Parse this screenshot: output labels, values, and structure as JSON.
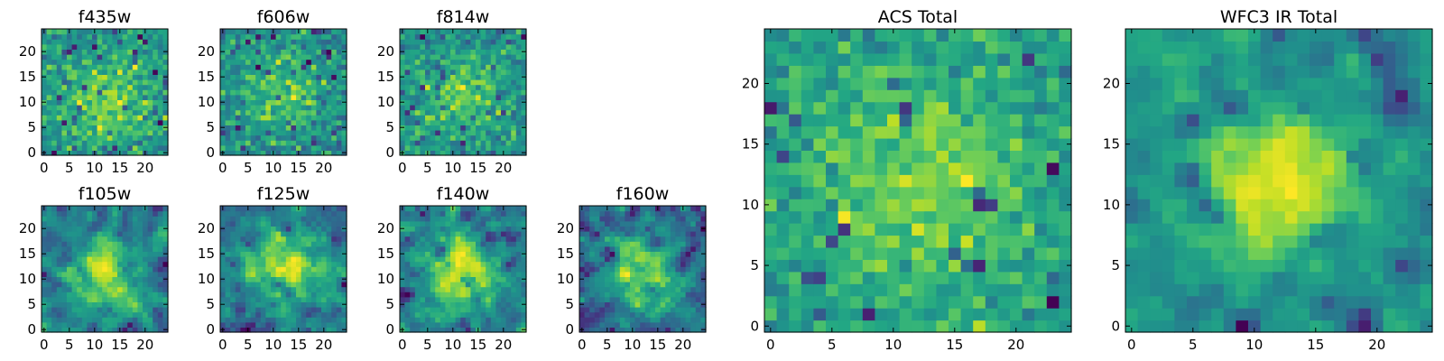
{
  "chart_data": [
    {
      "type": "heatmap",
      "title": "f435w",
      "grid_size": 25,
      "xticks": [
        0,
        5,
        10,
        15,
        20
      ],
      "yticks": [
        0,
        5,
        10,
        15,
        20
      ],
      "xlim": [
        0,
        25
      ],
      "ylim": [
        0,
        25
      ],
      "colormap": "viridis",
      "noise": 0.32,
      "peak": [
        13,
        10
      ],
      "peak_sigma": 6,
      "seed": 3
    },
    {
      "type": "heatmap",
      "title": "f606w",
      "grid_size": 25,
      "xticks": [
        0,
        5,
        10,
        15,
        20
      ],
      "yticks": [
        0,
        5,
        10,
        15,
        20
      ],
      "xlim": [
        0,
        25
      ],
      "ylim": [
        0,
        25
      ],
      "colormap": "viridis",
      "noise": 0.34,
      "peak": [
        12,
        12
      ],
      "peak_sigma": 6,
      "seed": 11
    },
    {
      "type": "heatmap",
      "title": "f814w",
      "grid_size": 25,
      "xticks": [
        0,
        5,
        10,
        15,
        20
      ],
      "yticks": [
        0,
        5,
        10,
        15,
        20
      ],
      "xlim": [
        0,
        25
      ],
      "ylim": [
        0,
        25
      ],
      "colormap": "viridis",
      "noise": 0.32,
      "peak": [
        12,
        11
      ],
      "peak_sigma": 5,
      "seed": 29
    },
    {
      "type": "heatmap",
      "title": "f105w",
      "grid_size": 25,
      "xticks": [
        0,
        5,
        10,
        15,
        20
      ],
      "yticks": [
        0,
        5,
        10,
        15,
        20
      ],
      "xlim": [
        0,
        25
      ],
      "ylim": [
        0,
        25
      ],
      "colormap": "viridis",
      "noise": 0.34,
      "peak": [
        12,
        10
      ],
      "peak_sigma": 6,
      "seed": 41
    },
    {
      "type": "heatmap",
      "title": "f125w",
      "grid_size": 25,
      "xticks": [
        0,
        5,
        10,
        15,
        20
      ],
      "yticks": [
        0,
        5,
        10,
        15,
        20
      ],
      "xlim": [
        0,
        25
      ],
      "ylim": [
        0,
        25
      ],
      "colormap": "viridis",
      "noise": 0.34,
      "peak": [
        12,
        12
      ],
      "peak_sigma": 6,
      "seed": 57
    },
    {
      "type": "heatmap",
      "title": "f140w",
      "grid_size": 25,
      "xticks": [
        0,
        5,
        10,
        15,
        20
      ],
      "yticks": [
        0,
        5,
        10,
        15,
        20
      ],
      "xlim": [
        0,
        25
      ],
      "ylim": [
        0,
        25
      ],
      "colormap": "viridis",
      "noise": 0.34,
      "peak": [
        12,
        12
      ],
      "peak_sigma": 5,
      "seed": 73
    },
    {
      "type": "heatmap",
      "title": "f160w",
      "grid_size": 25,
      "xticks": [
        0,
        5,
        10,
        15,
        20
      ],
      "yticks": [
        0,
        5,
        10,
        15,
        20
      ],
      "xlim": [
        0,
        25
      ],
      "ylim": [
        0,
        25
      ],
      "colormap": "viridis",
      "noise": 0.34,
      "peak": [
        12,
        11
      ],
      "peak_sigma": 5,
      "seed": 89
    },
    {
      "type": "heatmap",
      "title": "ACS Total",
      "grid_size": 25,
      "xticks": [
        0,
        5,
        10,
        15,
        20
      ],
      "yticks": [
        0,
        5,
        10,
        15,
        20
      ],
      "xlim": [
        0,
        25
      ],
      "ylim": [
        0,
        25
      ],
      "colormap": "viridis",
      "noise": 0.24,
      "peak": [
        12,
        12
      ],
      "peak_sigma": 7,
      "seed": 101
    },
    {
      "type": "heatmap",
      "title": "WFC3 IR Total",
      "grid_size": 25,
      "xticks": [
        0,
        5,
        10,
        15,
        20
      ],
      "yticks": [
        0,
        5,
        10,
        15,
        20
      ],
      "xlim": [
        0,
        25
      ],
      "ylim": [
        0,
        25
      ],
      "colormap": "viridis",
      "noise": 0.2,
      "peak": [
        12,
        12
      ],
      "peak_sigma": 4,
      "seed": 131
    }
  ]
}
